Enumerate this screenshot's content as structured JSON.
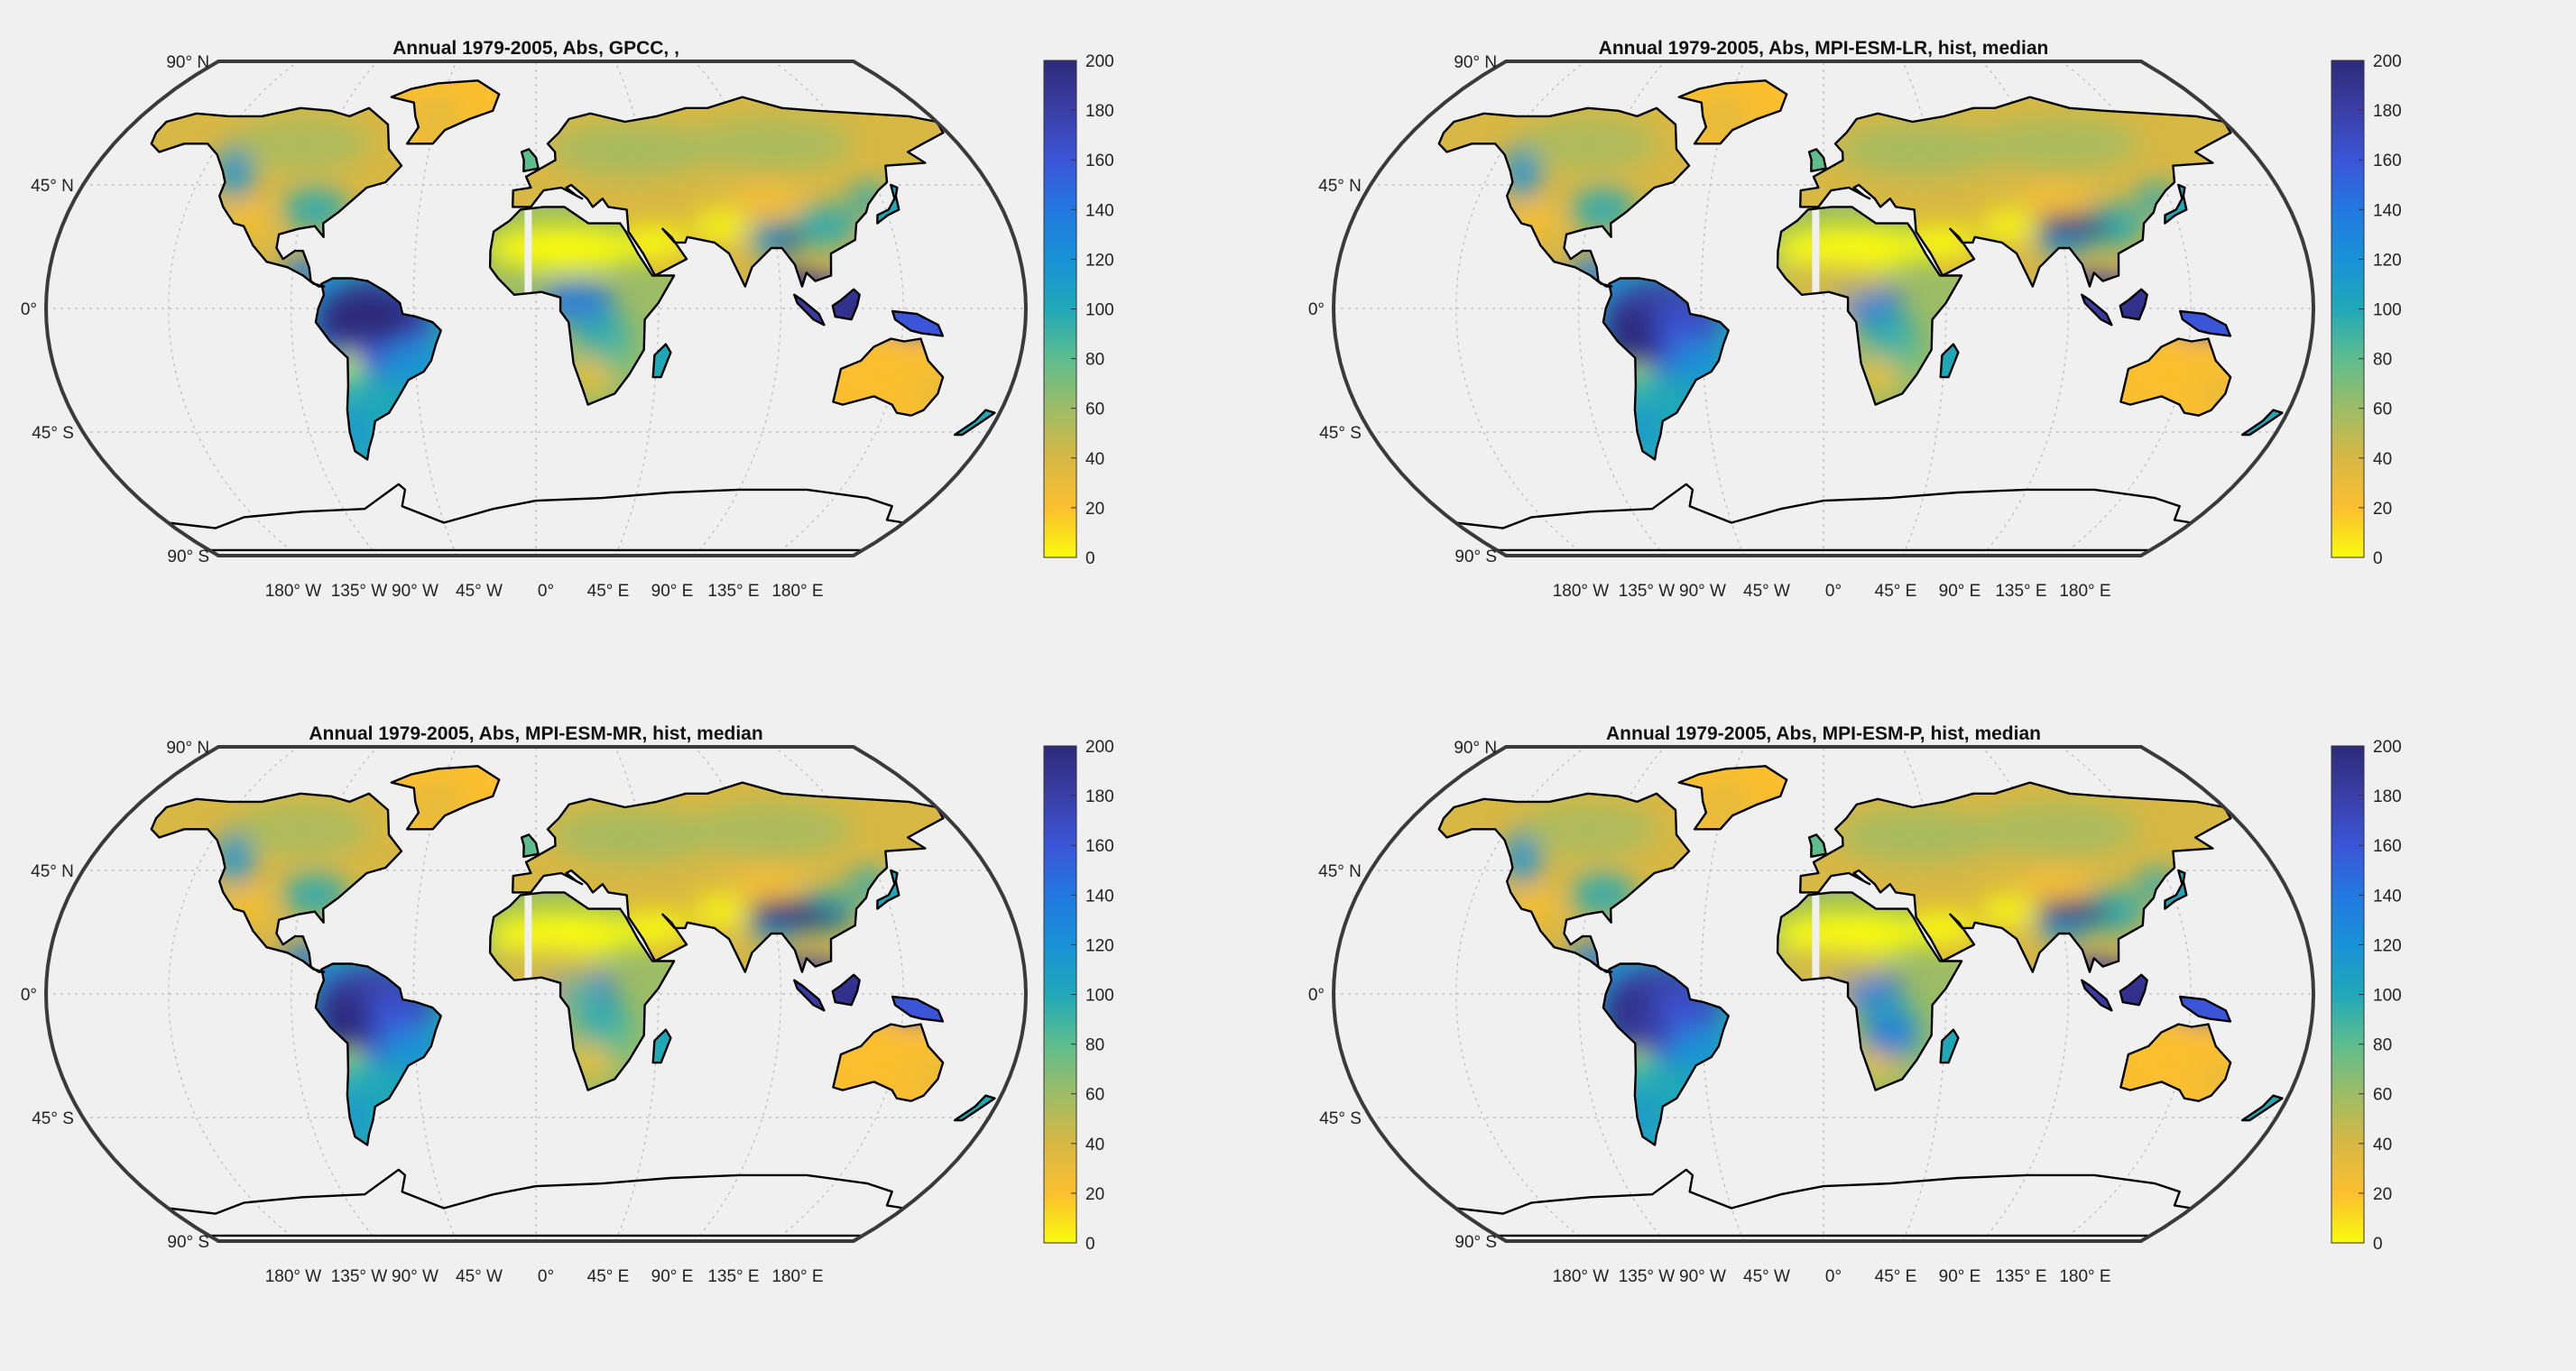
{
  "figure": {
    "panels": [
      {
        "title": "Annual 1979-2005, Abs, GPCC, ,",
        "variant": "obs"
      },
      {
        "title": "Annual 1979-2005, Abs, MPI-ESM-LR, hist, median",
        "variant": "lr"
      },
      {
        "title": "Annual 1979-2005, Abs, MPI-ESM-MR, hist, median",
        "variant": "mr"
      },
      {
        "title": "Annual 1979-2005, Abs, MPI-ESM-P, hist, median",
        "variant": "p"
      }
    ],
    "lat_labels": [
      "90° N",
      "45° N",
      "0°",
      "45° S",
      "90° S"
    ],
    "lon_labels": [
      "180° W",
      "135° W",
      "90° W",
      "45° W",
      "0°",
      "45° E",
      "90° E",
      "135° E",
      "180° E"
    ],
    "colorbar": {
      "ticks": [
        "0",
        "20",
        "40",
        "60",
        "80",
        "100",
        "120",
        "140",
        "160",
        "180",
        "200"
      ],
      "range": [
        0,
        200
      ],
      "colormap": [
        "#f9fb0e",
        "#fbbf2f",
        "#d8b844",
        "#9dbc66",
        "#5ebd8e",
        "#21a8b8",
        "#1892d6",
        "#2278e0",
        "#3b55d8",
        "#3b3fa6",
        "#2d2a7a"
      ]
    },
    "colors": {
      "background": "#f0f0f0",
      "coastline": "#000000",
      "gridline": "#b9b9b9",
      "frame": "#3a3a3a",
      "map_fill": "#f0f0f0"
    }
  }
}
